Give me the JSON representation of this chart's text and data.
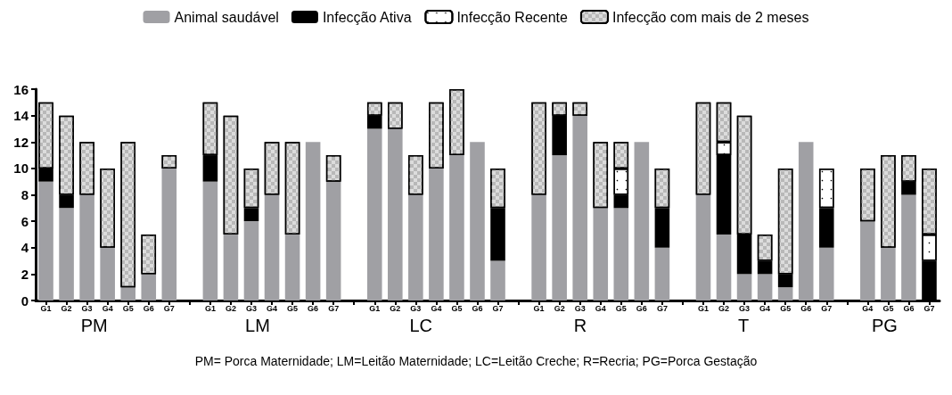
{
  "chart_data": {
    "type": "bar",
    "stacked": true,
    "legend": "top",
    "grid": false,
    "categories": [
      "G1",
      "G2",
      "G3",
      "G4",
      "G5",
      "G6",
      "G7",
      null,
      "G1",
      "G2",
      "G3",
      "G4",
      "G5",
      "G6",
      "G7",
      null,
      "G1",
      "G2",
      "G3",
      "G4",
      "G5",
      "G6",
      "G7",
      null,
      "G1",
      "G2",
      "G3",
      "G4",
      "G5",
      "G6",
      "G7",
      null,
      "G1",
      "G2",
      "G3",
      "G4",
      "G5",
      "G6",
      "G7",
      null,
      "G4",
      "G5",
      "G6",
      "G7"
    ],
    "series": [
      {
        "name": "Animal saudável",
        "color": "#a0a0a4",
        "values": [
          9,
          7,
          8,
          4,
          1,
          2,
          10,
          null,
          9,
          5,
          6,
          8,
          5,
          12,
          9,
          null,
          13,
          13,
          8,
          10,
          11,
          12,
          3,
          null,
          8,
          11,
          14,
          7,
          7,
          12,
          4,
          null,
          8,
          5,
          2,
          2,
          1,
          12,
          4,
          null,
          6,
          4,
          8,
          0
        ]
      },
      {
        "name": "Infecção Ativa",
        "color": "#000000",
        "values": [
          1,
          1,
          0,
          0,
          0,
          0,
          0,
          null,
          2,
          0,
          1,
          0,
          0,
          0,
          0,
          null,
          1,
          0,
          0,
          0,
          0,
          0,
          4,
          null,
          0,
          3,
          0,
          0,
          1,
          0,
          3,
          null,
          0,
          6,
          3,
          1,
          1,
          0,
          3,
          null,
          0,
          0,
          1,
          3
        ]
      },
      {
        "name": "Infecção Recente",
        "color": "#ffffff",
        "values": [
          0,
          0,
          0,
          0,
          0,
          0,
          0,
          null,
          0,
          0,
          0,
          0,
          0,
          0,
          0,
          null,
          0,
          0,
          0,
          0,
          0,
          0,
          0,
          null,
          0,
          0,
          0,
          0,
          2,
          0,
          0,
          null,
          0,
          1,
          0,
          0,
          0,
          0,
          3,
          null,
          0,
          0,
          0,
          2
        ]
      },
      {
        "name": "Infecção com mais de 2 meses",
        "color": "#dcdcdc",
        "values": [
          5,
          6,
          4,
          6,
          11,
          3,
          1,
          null,
          4,
          9,
          3,
          4,
          7,
          0,
          2,
          null,
          1,
          2,
          3,
          5,
          5,
          0,
          3,
          null,
          7,
          1,
          1,
          5,
          2,
          0,
          3,
          null,
          7,
          3,
          9,
          2,
          8,
          0,
          0,
          null,
          4,
          7,
          2,
          5
        ]
      }
    ],
    "ylim": [
      0,
      16
    ],
    "yticks": [
      0,
      2,
      4,
      6,
      8,
      10,
      12,
      14,
      16
    ],
    "annotations": [
      "PM",
      "LM",
      "LC",
      "R",
      "T",
      "PG",
      "PM= Porca Maternidade; LM=Leitão Maternidade; LC=Leitão Creche; R=Recria; PG=Porca Gestação"
    ]
  }
}
